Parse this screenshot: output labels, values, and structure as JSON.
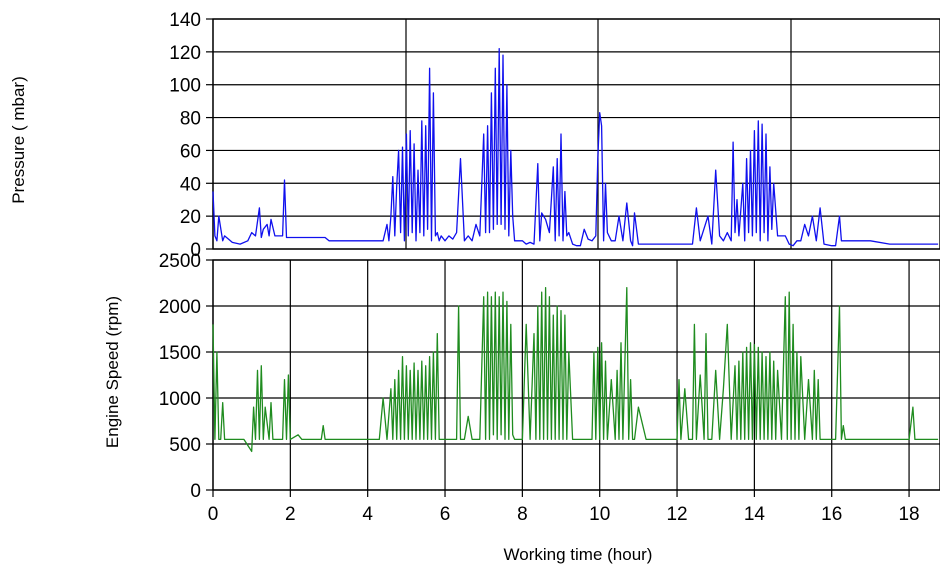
{
  "chart_data": [
    {
      "type": "line",
      "title": "",
      "xlabel": "",
      "ylabel": "Pressure ( mbar)",
      "xlim": [
        0,
        18.8
      ],
      "ylim": [
        0,
        140
      ],
      "yticks": [
        0,
        20,
        40,
        60,
        80,
        100,
        120,
        140
      ],
      "grid": true,
      "series": [
        {
          "color": "#1010ee",
          "x": [
            0,
            0.05,
            0.1,
            0.15,
            0.25,
            0.3,
            0.4,
            0.5,
            0.7,
            0.9,
            1.0,
            1.1,
            1.2,
            1.25,
            1.3,
            1.4,
            1.45,
            1.5,
            1.6,
            1.8,
            1.85,
            1.9,
            1.95,
            2.0,
            2.5,
            2.9,
            3.0,
            3.5,
            4.0,
            4.4,
            4.5,
            4.55,
            4.6,
            4.65,
            4.7,
            4.75,
            4.8,
            4.85,
            4.9,
            4.95,
            5.0,
            5.05,
            5.1,
            5.15,
            5.2,
            5.25,
            5.3,
            5.35,
            5.4,
            5.45,
            5.5,
            5.55,
            5.6,
            5.65,
            5.7,
            5.75,
            5.8,
            5.85,
            5.9,
            6.0,
            6.1,
            6.2,
            6.3,
            6.4,
            6.5,
            6.6,
            6.7,
            6.8,
            6.9,
            7.0,
            7.05,
            7.1,
            7.15,
            7.2,
            7.25,
            7.3,
            7.35,
            7.4,
            7.45,
            7.5,
            7.55,
            7.6,
            7.65,
            7.7,
            7.75,
            7.8,
            7.9,
            8.0,
            8.1,
            8.2,
            8.3,
            8.4,
            8.45,
            8.5,
            8.6,
            8.7,
            8.8,
            8.85,
            8.9,
            8.95,
            9.0,
            9.05,
            9.1,
            9.15,
            9.2,
            9.3,
            9.4,
            9.5,
            9.6,
            9.7,
            9.8,
            9.9,
            9.95,
            10.0,
            10.05,
            10.1,
            10.15,
            10.2,
            10.3,
            10.4,
            10.5,
            10.6,
            10.7,
            10.8,
            10.85,
            10.9,
            11.0,
            11.1,
            11.5,
            12.0,
            12.3,
            12.4,
            12.5,
            12.6,
            12.8,
            12.9,
            13.0,
            13.1,
            13.2,
            13.3,
            13.4,
            13.45,
            13.5,
            13.55,
            13.6,
            13.7,
            13.75,
            13.8,
            13.85,
            13.9,
            13.95,
            14.0,
            14.05,
            14.1,
            14.15,
            14.2,
            14.25,
            14.3,
            14.35,
            14.4,
            14.45,
            14.5,
            14.6,
            14.8,
            14.9,
            15.0,
            15.1,
            15.2,
            15.3,
            15.4,
            15.5,
            15.6,
            15.7,
            15.8,
            16.0,
            16.1,
            16.2,
            16.25,
            16.3,
            16.5,
            17.0,
            17.5,
            18.0,
            18.5,
            18.75
          ],
          "y": [
            35,
            8,
            5,
            20,
            5,
            8,
            6,
            4,
            3,
            5,
            10,
            8,
            25,
            7,
            12,
            15,
            8,
            18,
            8,
            8,
            42,
            7,
            7,
            7,
            7,
            7,
            5,
            5,
            5,
            5,
            15,
            5,
            20,
            44,
            8,
            38,
            60,
            10,
            62,
            5,
            70,
            8,
            72,
            10,
            64,
            5,
            48,
            10,
            78,
            8,
            75,
            12,
            110,
            5,
            95,
            8,
            10,
            5,
            8,
            5,
            8,
            6,
            10,
            55,
            5,
            8,
            5,
            15,
            8,
            70,
            10,
            75,
            10,
            95,
            12,
            110,
            15,
            122,
            15,
            118,
            12,
            100,
            8,
            60,
            20,
            5,
            5,
            5,
            3,
            4,
            3,
            52,
            5,
            22,
            18,
            10,
            50,
            5,
            55,
            8,
            70,
            5,
            35,
            8,
            10,
            3,
            2,
            2,
            12,
            6,
            5,
            8,
            55,
            83,
            75,
            5,
            40,
            10,
            5,
            5,
            20,
            5,
            28,
            5,
            2,
            22,
            3,
            3,
            3,
            3,
            3,
            3,
            25,
            5,
            20,
            3,
            48,
            8,
            5,
            10,
            5,
            65,
            10,
            30,
            8,
            40,
            5,
            55,
            10,
            60,
            8,
            72,
            10,
            78,
            5,
            76,
            10,
            70,
            5,
            50,
            12,
            40,
            8,
            8,
            3,
            2,
            5,
            5,
            15,
            8,
            20,
            5,
            25,
            3,
            2,
            2,
            20,
            5,
            5,
            5,
            5,
            3,
            3,
            3,
            3
          ]
        }
      ]
    },
    {
      "type": "line",
      "title": "",
      "xlabel": "Working time (hour)",
      "ylabel": "Engine Speed (rpm)",
      "xlim": [
        0,
        18.8
      ],
      "ylim": [
        0,
        2500
      ],
      "yticks": [
        0,
        500,
        1000,
        1500,
        2000,
        2500
      ],
      "xticks": [
        0,
        2,
        4,
        6,
        8,
        10,
        12,
        14,
        16,
        18
      ],
      "grid": true,
      "series": [
        {
          "color": "#1f8c1f",
          "x": [
            0,
            0.05,
            0.1,
            0.15,
            0.2,
            0.25,
            0.3,
            0.35,
            0.5,
            0.8,
            1.0,
            1.05,
            1.1,
            1.15,
            1.2,
            1.25,
            1.3,
            1.35,
            1.45,
            1.5,
            1.55,
            1.6,
            1.7,
            1.8,
            1.85,
            1.9,
            1.95,
            2.0,
            2.2,
            2.3,
            2.5,
            2.8,
            2.85,
            2.9,
            3.0,
            3.5,
            4.0,
            4.3,
            4.4,
            4.5,
            4.6,
            4.65,
            4.7,
            4.75,
            4.8,
            4.85,
            4.9,
            4.95,
            5.0,
            5.05,
            5.1,
            5.15,
            5.2,
            5.25,
            5.3,
            5.35,
            5.4,
            5.45,
            5.5,
            5.55,
            5.6,
            5.65,
            5.7,
            5.75,
            5.8,
            5.85,
            5.9,
            6.0,
            6.1,
            6.2,
            6.3,
            6.35,
            6.4,
            6.5,
            6.6,
            6.7,
            6.8,
            6.9,
            7.0,
            7.05,
            7.1,
            7.15,
            7.2,
            7.25,
            7.3,
            7.35,
            7.4,
            7.45,
            7.5,
            7.55,
            7.6,
            7.65,
            7.7,
            7.75,
            7.8,
            7.9,
            8.0,
            8.1,
            8.2,
            8.3,
            8.35,
            8.4,
            8.45,
            8.5,
            8.55,
            8.6,
            8.65,
            8.7,
            8.75,
            8.8,
            8.85,
            8.9,
            8.95,
            9.0,
            9.05,
            9.1,
            9.15,
            9.2,
            9.3,
            9.4,
            9.5,
            9.6,
            9.7,
            9.8,
            9.85,
            9.9,
            9.95,
            10.0,
            10.05,
            10.1,
            10.15,
            10.2,
            10.3,
            10.4,
            10.45,
            10.5,
            10.55,
            10.6,
            10.7,
            10.75,
            10.8,
            10.85,
            10.9,
            11.0,
            11.2,
            11.4,
            11.5,
            12.0,
            12.05,
            12.1,
            12.2,
            12.3,
            12.4,
            12.45,
            12.5,
            12.6,
            12.7,
            12.75,
            12.8,
            12.9,
            13.0,
            13.1,
            13.2,
            13.3,
            13.4,
            13.5,
            13.55,
            13.6,
            13.65,
            13.7,
            13.75,
            13.8,
            13.85,
            13.9,
            13.95,
            14.0,
            14.05,
            14.1,
            14.15,
            14.2,
            14.25,
            14.3,
            14.35,
            14.4,
            14.45,
            14.5,
            14.55,
            14.6,
            14.7,
            14.8,
            14.85,
            14.9,
            14.95,
            15.0,
            15.05,
            15.1,
            15.15,
            15.2,
            15.3,
            15.4,
            15.5,
            15.55,
            15.6,
            15.65,
            15.7,
            15.8,
            16.0,
            16.1,
            16.2,
            16.25,
            16.3,
            16.35,
            16.5,
            17.0,
            17.5,
            18.0,
            18.1,
            18.15,
            18.2,
            18.5,
            18.75
          ],
          "y": [
            1800,
            550,
            1500,
            550,
            550,
            950,
            550,
            550,
            550,
            550,
            420,
            900,
            550,
            1300,
            550,
            1350,
            550,
            900,
            550,
            950,
            550,
            550,
            550,
            550,
            1200,
            550,
            1250,
            550,
            600,
            550,
            550,
            550,
            700,
            550,
            550,
            550,
            550,
            550,
            1000,
            550,
            1100,
            550,
            1200,
            550,
            1300,
            550,
            1450,
            550,
            1350,
            550,
            1300,
            550,
            1380,
            550,
            1300,
            550,
            1400,
            550,
            1350,
            550,
            1450,
            550,
            1500,
            550,
            1700,
            550,
            550,
            550,
            550,
            550,
            550,
            2000,
            550,
            550,
            800,
            550,
            550,
            550,
            2100,
            550,
            2150,
            550,
            2100,
            600,
            2150,
            550,
            2100,
            600,
            2150,
            550,
            2050,
            550,
            1800,
            600,
            550,
            550,
            550,
            1800,
            550,
            1700,
            550,
            2000,
            550,
            2150,
            550,
            2200,
            550,
            2100,
            550,
            1900,
            550,
            2000,
            550,
            1950,
            550,
            1900,
            550,
            1500,
            550,
            550,
            550,
            550,
            550,
            550,
            1500,
            550,
            1550,
            550,
            1600,
            550,
            1400,
            550,
            1200,
            550,
            1300,
            550,
            1600,
            550,
            2200,
            550,
            1200,
            550,
            550,
            900,
            550,
            550,
            550,
            550,
            1200,
            550,
            1100,
            550,
            550,
            1800,
            550,
            1250,
            550,
            1700,
            550,
            550,
            1300,
            550,
            1100,
            1800,
            550,
            1350,
            550,
            1400,
            550,
            1500,
            550,
            1550,
            550,
            1600,
            550,
            1580,
            550,
            1550,
            550,
            1500,
            550,
            1450,
            550,
            1500,
            550,
            1400,
            550,
            1300,
            550,
            2100,
            550,
            2150,
            550,
            1800,
            550,
            1500,
            550,
            1450,
            550,
            1200,
            550,
            1300,
            550,
            1200,
            550,
            550,
            550,
            550,
            2000,
            550,
            700,
            550,
            550,
            550,
            550,
            550,
            900,
            550,
            550,
            550,
            550
          ]
        }
      ]
    }
  ]
}
